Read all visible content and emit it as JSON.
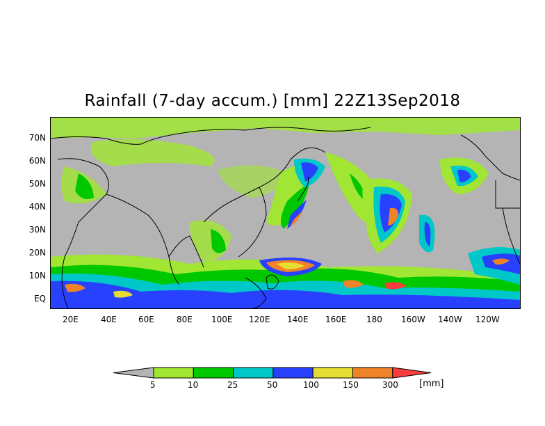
{
  "title": "Rainfall (7-day accum.) [mm] 22Z13Sep2018",
  "map": {
    "background_color": "#b4b4b4",
    "lat_labels": [
      "70N",
      "60N",
      "50N",
      "40N",
      "30N",
      "20N",
      "10N",
      "EQ"
    ],
    "lon_labels": [
      "20E",
      "40E",
      "60E",
      "80E",
      "100E",
      "120E",
      "140E",
      "160E",
      "180",
      "160W",
      "140W",
      "120W"
    ]
  },
  "colorbar": {
    "levels": [
      "5",
      "10",
      "25",
      "50",
      "100",
      "150",
      "300"
    ],
    "unit": "[mm]",
    "colors": [
      "#b4b4b4",
      "#a0e632",
      "#00c800",
      "#00c8c8",
      "#2841ff",
      "#e6dc32",
      "#f08228",
      "#fa3c3c"
    ]
  }
}
